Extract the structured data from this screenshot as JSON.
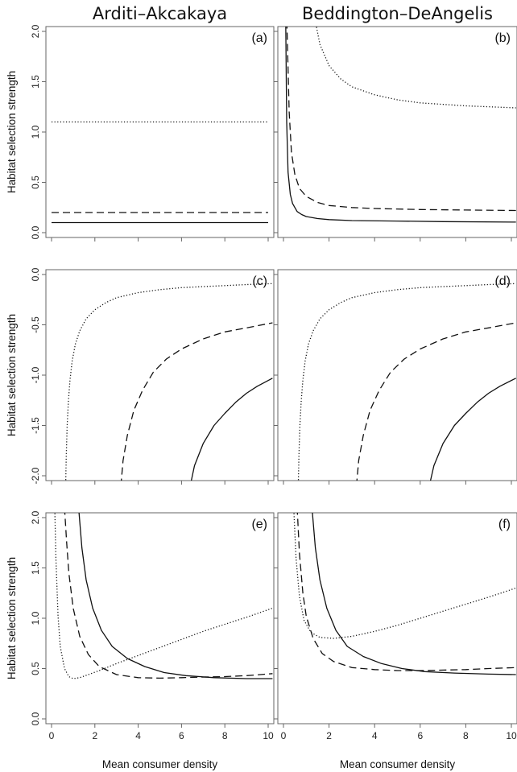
{
  "chart_data": [
    {
      "panel": "(a)",
      "type": "line",
      "title": "Arditi–Akcakaya",
      "ylabel": "Habitat selection strength",
      "xlabel": "",
      "xlim": [
        0,
        10
      ],
      "ylim": [
        0,
        2
      ],
      "yticks": [
        "0.0",
        "0.5",
        "1.0",
        "1.5",
        "2.0"
      ],
      "xticks": [],
      "series": [
        {
          "style": "dotted",
          "x": [
            0,
            10
          ],
          "y": [
            1.1,
            1.1
          ]
        },
        {
          "style": "dashed",
          "x": [
            0,
            10
          ],
          "y": [
            0.2,
            0.2
          ]
        },
        {
          "style": "solid",
          "x": [
            0,
            10
          ],
          "y": [
            0.1,
            0.1
          ]
        }
      ]
    },
    {
      "panel": "(b)",
      "type": "line",
      "title": "Beddington–DeAngelis",
      "ylabel": "",
      "xlabel": "",
      "xlim": [
        0,
        10
      ],
      "ylim": [
        0,
        2
      ],
      "yticks": [],
      "xticks": [],
      "series": [
        {
          "style": "dotted",
          "x": [
            1.4,
            1.6,
            2,
            2.5,
            3,
            4,
            5,
            6,
            8,
            10.2
          ],
          "y": [
            2.1,
            1.87,
            1.66,
            1.53,
            1.45,
            1.37,
            1.32,
            1.29,
            1.26,
            1.24
          ]
        },
        {
          "style": "dashed",
          "x": [
            0.15,
            0.25,
            0.35,
            0.5,
            0.7,
            1,
            1.5,
            2,
            3,
            4,
            6,
            8,
            10.2
          ],
          "y": [
            2.1,
            1.2,
            0.8,
            0.58,
            0.44,
            0.36,
            0.3,
            0.27,
            0.25,
            0.24,
            0.23,
            0.225,
            0.22
          ]
        },
        {
          "style": "solid",
          "x": [
            0.1,
            0.14,
            0.2,
            0.3,
            0.4,
            0.6,
            0.8,
            1,
            1.5,
            2,
            3,
            5,
            7,
            10.2
          ],
          "y": [
            2.1,
            1.1,
            0.6,
            0.38,
            0.29,
            0.21,
            0.18,
            0.16,
            0.14,
            0.13,
            0.12,
            0.115,
            0.11,
            0.105
          ]
        }
      ]
    },
    {
      "panel": "(c)",
      "type": "line",
      "title": "",
      "ylabel": "Habitat selection strength",
      "xlabel": "",
      "xlim": [
        0,
        10
      ],
      "ylim": [
        -2,
        0
      ],
      "yticks": [
        "-2.0",
        "-1.5",
        "-1.0",
        "-0.5",
        "0.0"
      ],
      "xticks": [],
      "series": [
        {
          "style": "dotted",
          "x": [
            0.65,
            0.68,
            0.72,
            0.78,
            0.85,
            0.95,
            1.1,
            1.3,
            1.6,
            2,
            2.5,
            3,
            4,
            5,
            6,
            7,
            8,
            9,
            10.2
          ],
          "y": [
            -2.1,
            -1.8,
            -1.5,
            -1.25,
            -1.05,
            -0.86,
            -0.69,
            -0.56,
            -0.44,
            -0.35,
            -0.28,
            -0.23,
            -0.18,
            -0.15,
            -0.13,
            -0.12,
            -0.11,
            -0.1,
            -0.09
          ]
        },
        {
          "style": "dashed",
          "x": [
            3.2,
            3.3,
            3.5,
            3.8,
            4.2,
            4.7,
            5.3,
            6,
            7,
            8,
            9,
            10.2
          ],
          "y": [
            -2.1,
            -1.85,
            -1.6,
            -1.35,
            -1.15,
            -0.97,
            -0.84,
            -0.74,
            -0.64,
            -0.57,
            -0.53,
            -0.48
          ]
        },
        {
          "style": "solid",
          "x": [
            6.4,
            6.6,
            7,
            7.5,
            8,
            8.5,
            9,
            9.5,
            10.2
          ],
          "y": [
            -2.1,
            -1.9,
            -1.68,
            -1.5,
            -1.38,
            -1.27,
            -1.18,
            -1.11,
            -1.03
          ]
        }
      ]
    },
    {
      "panel": "(d)",
      "type": "line",
      "title": "",
      "ylabel": "",
      "xlabel": "",
      "xlim": [
        0,
        10
      ],
      "ylim": [
        -2,
        0
      ],
      "yticks": [],
      "xticks": [],
      "series": [
        {
          "style": "dotted",
          "x": [
            0.65,
            0.68,
            0.72,
            0.78,
            0.85,
            0.95,
            1.1,
            1.3,
            1.6,
            2,
            2.5,
            3,
            4,
            5,
            6,
            7,
            8,
            9,
            10.2
          ],
          "y": [
            -2.1,
            -1.8,
            -1.5,
            -1.25,
            -1.05,
            -0.86,
            -0.69,
            -0.56,
            -0.44,
            -0.35,
            -0.28,
            -0.23,
            -0.18,
            -0.15,
            -0.13,
            -0.12,
            -0.11,
            -0.1,
            -0.09
          ]
        },
        {
          "style": "dashed",
          "x": [
            3.2,
            3.3,
            3.5,
            3.8,
            4.2,
            4.7,
            5.3,
            6,
            7,
            8,
            9,
            10.2
          ],
          "y": [
            -2.1,
            -1.85,
            -1.6,
            -1.35,
            -1.15,
            -0.97,
            -0.84,
            -0.74,
            -0.64,
            -0.57,
            -0.53,
            -0.48
          ]
        },
        {
          "style": "solid",
          "x": [
            6.4,
            6.6,
            7,
            7.5,
            8,
            8.5,
            9,
            9.5,
            10.2
          ],
          "y": [
            -2.1,
            -1.9,
            -1.68,
            -1.5,
            -1.38,
            -1.27,
            -1.18,
            -1.11,
            -1.03
          ]
        }
      ]
    },
    {
      "panel": "(e)",
      "type": "line",
      "title": "",
      "ylabel": "Habitat selection strength",
      "xlabel": "Mean consumer density",
      "xlim": [
        0,
        10
      ],
      "ylim": [
        0,
        2
      ],
      "yticks": [
        "0.0",
        "0.5",
        "1.0",
        "1.5",
        "2.0"
      ],
      "xticks": [
        "0",
        "2",
        "4",
        "6",
        "8",
        "10"
      ],
      "series": [
        {
          "style": "dotted",
          "x": [
            0.15,
            0.2,
            0.3,
            0.4,
            0.6,
            0.8,
            1,
            1.3,
            1.7,
            2.2,
            3,
            4,
            5,
            6,
            7,
            8,
            9,
            10.2
          ],
          "y": [
            2.1,
            1.6,
            1.02,
            0.72,
            0.5,
            0.42,
            0.4,
            0.41,
            0.44,
            0.48,
            0.55,
            0.63,
            0.71,
            0.79,
            0.87,
            0.94,
            1.01,
            1.1
          ]
        },
        {
          "style": "dashed",
          "x": [
            0.6,
            0.7,
            0.8,
            1,
            1.3,
            1.7,
            2.2,
            3,
            4,
            5,
            6,
            7,
            8,
            9,
            10.2
          ],
          "y": [
            2.1,
            1.75,
            1.45,
            1.1,
            0.82,
            0.64,
            0.52,
            0.44,
            0.41,
            0.405,
            0.41,
            0.415,
            0.42,
            0.43,
            0.45
          ]
        },
        {
          "style": "solid",
          "x": [
            1.25,
            1.4,
            1.6,
            1.9,
            2.3,
            2.8,
            3.5,
            4.3,
            5.2,
            6.2,
            7.5,
            9,
            10.2
          ],
          "y": [
            2.1,
            1.7,
            1.38,
            1.1,
            0.88,
            0.72,
            0.6,
            0.52,
            0.46,
            0.43,
            0.41,
            0.4,
            0.4
          ]
        }
      ]
    },
    {
      "panel": "(f)",
      "type": "line",
      "title": "",
      "ylabel": "",
      "xlabel": "Mean consumer density",
      "xlim": [
        0,
        10
      ],
      "ylim": [
        0,
        2
      ],
      "yticks": [],
      "xticks": [
        "0",
        "2",
        "4",
        "6",
        "8",
        "10"
      ],
      "series": [
        {
          "style": "dotted",
          "x": [
            0.45,
            0.55,
            0.7,
            0.9,
            1.2,
            1.6,
            2.2,
            3,
            4,
            5,
            6,
            7,
            8,
            9,
            10.2
          ],
          "y": [
            2.1,
            1.6,
            1.22,
            0.98,
            0.86,
            0.81,
            0.8,
            0.82,
            0.87,
            0.93,
            1.0,
            1.07,
            1.14,
            1.21,
            1.3
          ]
        },
        {
          "style": "dashed",
          "x": [
            0.6,
            0.7,
            0.85,
            1,
            1.3,
            1.7,
            2.2,
            3,
            4,
            5,
            6,
            7,
            8,
            9,
            10.2
          ],
          "y": [
            2.1,
            1.65,
            1.25,
            1.02,
            0.8,
            0.65,
            0.57,
            0.51,
            0.49,
            0.48,
            0.48,
            0.485,
            0.49,
            0.5,
            0.51
          ]
        },
        {
          "style": "solid",
          "x": [
            1.25,
            1.4,
            1.6,
            1.9,
            2.3,
            2.8,
            3.5,
            4.3,
            5.2,
            6.2,
            7.5,
            9,
            10.2
          ],
          "y": [
            2.1,
            1.7,
            1.38,
            1.1,
            0.88,
            0.72,
            0.62,
            0.55,
            0.5,
            0.47,
            0.455,
            0.445,
            0.44
          ]
        }
      ]
    }
  ]
}
